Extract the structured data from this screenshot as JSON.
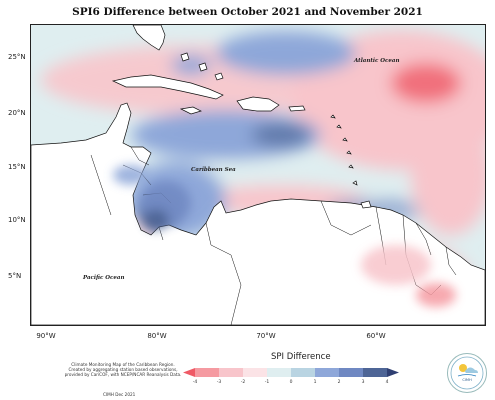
{
  "title": "SPI6 Difference between October 2021 and November 2021",
  "map": {
    "labels": {
      "atlantic": "Atlantic Ocean",
      "caribbean": "Caribbean Sea",
      "pacific": "Pacific Ocean"
    },
    "lat_ticks": [
      "25°N",
      "20°N",
      "15°N",
      "10°N",
      "5°N"
    ],
    "lon_ticks": [
      "90°W",
      "80°W",
      "70°W",
      "60°W"
    ]
  },
  "footer": {
    "credit_line1": "Climate Monitoring Map of the Caribbean Region.",
    "credit_line2": "Created by aggregating station based observations,",
    "credit_line3": "provided by CariCOF, with NCEP/NCAR Reanalysis Data.",
    "issued": "CIMH Dec 2021"
  },
  "legend": {
    "title": "SPI Difference",
    "ticks": [
      "-4",
      "-3",
      "-2",
      "-1",
      "0",
      "1",
      "2",
      "3",
      "4"
    ],
    "colors": [
      "#ef5a66",
      "#f59aa1",
      "#f8c5cb",
      "#fbe3e6",
      "#dfeef0",
      "#b9d4e2",
      "#8ea7d9",
      "#6f88c2",
      "#4e6596",
      "#2f3f72"
    ]
  },
  "logo": {
    "text": "CIMH"
  }
}
